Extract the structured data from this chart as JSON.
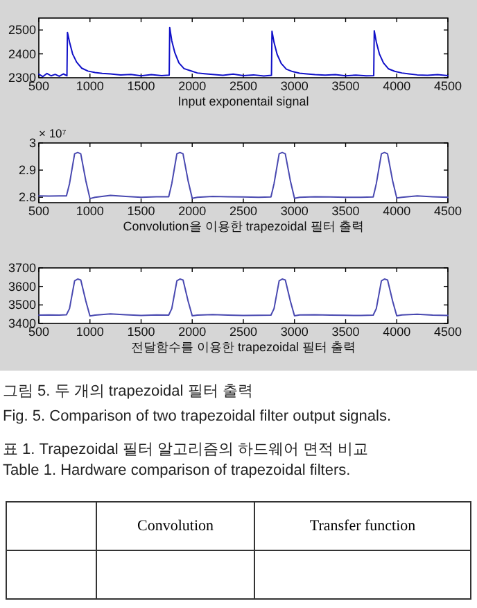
{
  "chart_data": [
    {
      "type": "line",
      "xlabel": "Input exponentail signal",
      "xlim": [
        500,
        4500
      ],
      "xticks": [
        500,
        1000,
        1500,
        2000,
        2500,
        3000,
        3500,
        4000,
        4500
      ],
      "ylim": [
        2300,
        2550
      ],
      "yticks": [
        2300,
        2400,
        2500
      ],
      "series": [
        {
          "color": "#1010c8",
          "x": [
            500,
            540,
            580,
            620,
            660,
            700,
            740,
            775,
            780,
            800,
            830,
            870,
            920,
            980,
            1050,
            1120,
            1200,
            1300,
            1400,
            1500,
            1600,
            1700,
            1775,
            1780,
            1800,
            1830,
            1870,
            1920,
            1980,
            2050,
            2120,
            2200,
            2300,
            2400,
            2500,
            2600,
            2700,
            2775,
            2780,
            2800,
            2830,
            2870,
            2920,
            2980,
            3050,
            3120,
            3200,
            3300,
            3400,
            3500,
            3600,
            3700,
            3775,
            3780,
            3800,
            3830,
            3870,
            3920,
            3980,
            4050,
            4120,
            4200,
            4300,
            4400,
            4500
          ],
          "values": [
            2315,
            2305,
            2318,
            2308,
            2314,
            2306,
            2316,
            2308,
            2490,
            2450,
            2400,
            2365,
            2340,
            2328,
            2322,
            2318,
            2316,
            2312,
            2314,
            2308,
            2313,
            2309,
            2311,
            2510,
            2455,
            2405,
            2362,
            2338,
            2330,
            2320,
            2317,
            2314,
            2310,
            2315,
            2309,
            2312,
            2307,
            2310,
            2495,
            2448,
            2398,
            2360,
            2336,
            2326,
            2319,
            2316,
            2313,
            2311,
            2313,
            2308,
            2311,
            2308,
            2309,
            2497,
            2450,
            2400,
            2362,
            2337,
            2327,
            2320,
            2316,
            2312,
            2310,
            2313,
            2309
          ]
        }
      ]
    },
    {
      "type": "line",
      "xlabel": "Convolution을 이용한 trapezoidal 필터 출력",
      "annotations": [
        "× 10⁷"
      ],
      "xlim": [
        500,
        4500
      ],
      "xticks": [
        500,
        1000,
        1500,
        2000,
        2500,
        3000,
        3500,
        4000,
        4500
      ],
      "ylim": [
        2.78,
        3
      ],
      "yticks": [
        2.8,
        2.9,
        3
      ],
      "series": [
        {
          "color": "#4848b0",
          "x": [
            500,
            600,
            700,
            770,
            800,
            850,
            880,
            910,
            960,
            1000,
            1050,
            1200,
            1350,
            1500,
            1650,
            1770,
            1800,
            1850,
            1880,
            1910,
            1960,
            2000,
            2050,
            2200,
            2350,
            2500,
            2650,
            2770,
            2800,
            2850,
            2880,
            2910,
            2960,
            3000,
            3050,
            3200,
            3350,
            3500,
            3650,
            3770,
            3800,
            3850,
            3880,
            3910,
            3960,
            4000,
            4050,
            4200,
            4350,
            4500
          ],
          "values": [
            2.805,
            2.804,
            2.805,
            2.805,
            2.85,
            2.96,
            2.965,
            2.96,
            2.86,
            2.795,
            2.8,
            2.807,
            2.803,
            2.8,
            2.802,
            2.802,
            2.85,
            2.96,
            2.965,
            2.96,
            2.86,
            2.796,
            2.8,
            2.803,
            2.802,
            2.801,
            2.8,
            2.801,
            2.85,
            2.96,
            2.965,
            2.96,
            2.86,
            2.796,
            2.8,
            2.802,
            2.801,
            2.8,
            2.8,
            2.801,
            2.85,
            2.96,
            2.965,
            2.96,
            2.86,
            2.797,
            2.8,
            2.805,
            2.802,
            2.8
          ]
        }
      ]
    },
    {
      "type": "line",
      "xlabel": "전달함수를 이용한 trapezoidal 필터 출력",
      "xlim": [
        500,
        4500
      ],
      "xticks": [
        500,
        1000,
        1500,
        2000,
        2500,
        3000,
        3500,
        4000,
        4500
      ],
      "ylim": [
        3400,
        3700
      ],
      "yticks": [
        3400,
        3500,
        3600,
        3700
      ],
      "annotations": [
        "그림 5. 두 개의 trapezoidal 필터 출력",
        "Fig. 5. Comparison of two trapezoidal filter output signals.",
        "표 1. Trapezoidal 필터 알고리즘의 하드웨어 면적 비교",
        "Table 1. Hardware comparison of trapezoidal filters.",
        "Convolution",
        "Transfer function"
      ],
      "series": [
        {
          "color": "#4848b0",
          "x": [
            500,
            600,
            700,
            770,
            800,
            850,
            880,
            910,
            960,
            1000,
            1050,
            1200,
            1350,
            1500,
            1650,
            1770,
            1800,
            1850,
            1880,
            1910,
            1960,
            2000,
            2050,
            2200,
            2350,
            2500,
            2650,
            2770,
            2800,
            2850,
            2880,
            2910,
            2960,
            3000,
            3050,
            3200,
            3350,
            3500,
            3650,
            3770,
            3800,
            3850,
            3880,
            3910,
            3960,
            4000,
            4050,
            4200,
            4350,
            4500
          ],
          "values": [
            3445,
            3446,
            3445,
            3447,
            3480,
            3630,
            3640,
            3635,
            3520,
            3440,
            3445,
            3452,
            3447,
            3443,
            3446,
            3445,
            3480,
            3630,
            3640,
            3635,
            3520,
            3441,
            3445,
            3448,
            3445,
            3443,
            3444,
            3445,
            3480,
            3630,
            3640,
            3635,
            3520,
            3441,
            3446,
            3447,
            3445,
            3444,
            3443,
            3445,
            3480,
            3630,
            3640,
            3635,
            3520,
            3441,
            3446,
            3450,
            3445,
            3443
          ]
        }
      ]
    }
  ]
}
